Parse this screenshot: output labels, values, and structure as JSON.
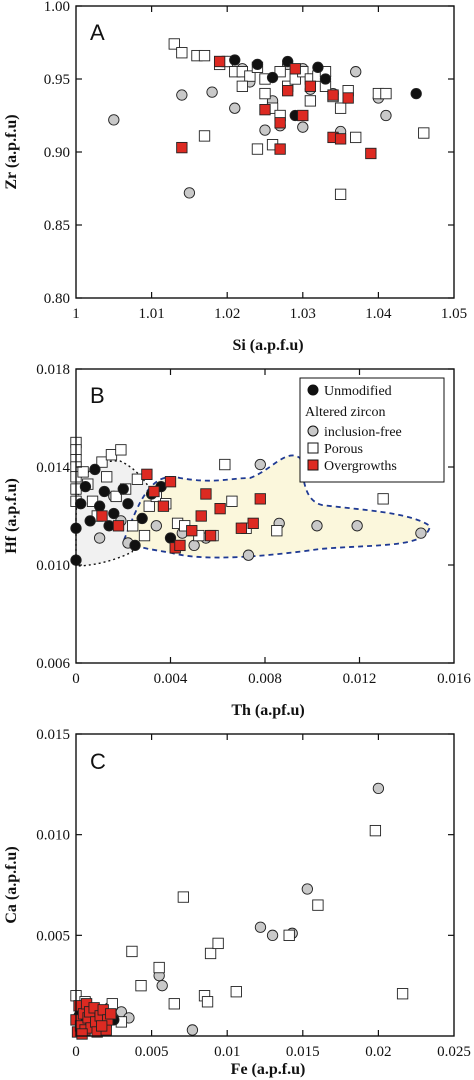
{
  "colors": {
    "unmodified": "#111111",
    "inclusion_free": "#c9c9c9",
    "porous": "#ffffff",
    "overgrowth": "#dd2a22",
    "region_fill": "#fbf7dc",
    "region_stroke": "#1f3a93"
  },
  "legend": {
    "unmodified": "Unmodified",
    "altered_header": "Altered zircon",
    "inclusion_free": "inclusion-free",
    "porous": "Porous",
    "overgrowths": "Overgrowths"
  },
  "chart_data": [
    {
      "panel": "A",
      "type": "scatter",
      "xlabel": "Si (a.p.f.u)",
      "ylabel": "Zr (a.p.f.u)",
      "xlim": [
        1,
        1.05
      ],
      "ylim": [
        0.8,
        1.0
      ],
      "xticks": [
        "1",
        "1.01",
        "1.02",
        "1.03",
        "1.04",
        "1.05"
      ],
      "yticks": [
        "0.80",
        "0.85",
        "0.90",
        "0.95",
        "1.00"
      ],
      "series": [
        {
          "key": "unmodified",
          "points": [
            [
              1.021,
              0.963
            ],
            [
              1.024,
              0.96
            ],
            [
              1.028,
              0.962
            ],
            [
              1.032,
              0.958
            ],
            [
              1.029,
              0.925
            ],
            [
              1.026,
              0.951
            ],
            [
              1.045,
              0.94
            ],
            [
              1.033,
              0.95
            ]
          ]
        },
        {
          "key": "inclusion_free",
          "points": [
            [
              1.005,
              0.922
            ],
            [
              1.015,
              0.872
            ],
            [
              1.014,
              0.939
            ],
            [
              1.018,
              0.941
            ],
            [
              1.02,
              0.962
            ],
            [
              1.021,
              0.93
            ],
            [
              1.023,
              0.948
            ],
            [
              1.025,
              0.915
            ],
            [
              1.027,
              0.918
            ],
            [
              1.03,
              0.917
            ],
            [
              1.031,
              0.943
            ],
            [
              1.033,
              0.952
            ],
            [
              1.035,
              0.914
            ],
            [
              1.037,
              0.955
            ],
            [
              1.04,
              0.937
            ],
            [
              1.041,
              0.925
            ],
            [
              1.028,
              0.96
            ],
            [
              1.031,
              0.95
            ],
            [
              1.022,
              0.957
            ],
            [
              1.034,
              0.94
            ],
            [
              1.026,
              0.935
            ],
            [
              1.03,
              0.957
            ]
          ]
        },
        {
          "key": "porous",
          "points": [
            [
              1.013,
              0.974
            ],
            [
              1.014,
              0.968
            ],
            [
              1.016,
              0.966
            ],
            [
              1.017,
              0.966
            ],
            [
              1.019,
              0.96
            ],
            [
              1.02,
              0.962
            ],
            [
              1.021,
              0.955
            ],
            [
              1.022,
              0.955
            ],
            [
              1.023,
              0.952
            ],
            [
              1.024,
              0.958
            ],
            [
              1.025,
              0.95
            ],
            [
              1.025,
              0.94
            ],
            [
              1.026,
              0.93
            ],
            [
              1.026,
              0.905
            ],
            [
              1.027,
              0.955
            ],
            [
              1.028,
              0.945
            ],
            [
              1.029,
              0.95
            ],
            [
              1.03,
              0.955
            ],
            [
              1.031,
              0.95
            ],
            [
              1.032,
              0.952
            ],
            [
              1.033,
              0.945
            ],
            [
              1.034,
              0.938
            ],
            [
              1.035,
              0.93
            ],
            [
              1.036,
              0.942
            ],
            [
              1.037,
              0.91
            ],
            [
              1.04,
              0.94
            ],
            [
              1.041,
              0.94
            ],
            [
              1.046,
              0.913
            ],
            [
              1.035,
              0.871
            ],
            [
              1.024,
              0.902
            ],
            [
              1.017,
              0.911
            ],
            [
              1.031,
              0.935
            ],
            [
              1.027,
              0.925
            ],
            [
              1.022,
              0.945
            ],
            [
              1.033,
              0.955
            ]
          ]
        },
        {
          "key": "overgrowth",
          "points": [
            [
              1.014,
              0.903
            ],
            [
              1.019,
              0.962
            ],
            [
              1.025,
              0.929
            ],
            [
              1.027,
              0.92
            ],
            [
              1.027,
              0.902
            ],
            [
              1.029,
              0.957
            ],
            [
              1.03,
              0.925
            ],
            [
              1.031,
              0.945
            ],
            [
              1.034,
              0.939
            ],
            [
              1.034,
              0.91
            ],
            [
              1.035,
              0.909
            ],
            [
              1.036,
              0.937
            ],
            [
              1.039,
              0.899
            ],
            [
              1.028,
              0.942
            ]
          ]
        }
      ]
    },
    {
      "panel": "B",
      "type": "scatter",
      "xlabel": "Th (a.pf.u)",
      "ylabel": "Hf (a.p.f.u)",
      "xlim": [
        0,
        0.016
      ],
      "ylim": [
        0.006,
        0.018
      ],
      "xticks": [
        "0",
        "0.004",
        "0.008",
        "0.012",
        "0.016"
      ],
      "yticks": [
        "0.006",
        "0.010",
        "0.014",
        "0.018"
      ],
      "series": [
        {
          "key": "unmodified",
          "points": [
            [
              0.0,
              0.0102
            ],
            [
              0.0,
              0.0115
            ],
            [
              0.0002,
              0.0125
            ],
            [
              0.0004,
              0.0132
            ],
            [
              0.0006,
              0.0118
            ],
            [
              0.0008,
              0.0139
            ],
            [
              0.001,
              0.0124
            ],
            [
              0.0012,
              0.013
            ],
            [
              0.0014,
              0.0116
            ],
            [
              0.0016,
              0.0121
            ],
            [
              0.002,
              0.0131
            ],
            [
              0.0022,
              0.0125
            ],
            [
              0.0025,
              0.0108
            ],
            [
              0.0028,
              0.0119
            ],
            [
              0.0032,
              0.0129
            ],
            [
              0.0036,
              0.0132
            ],
            [
              0.004,
              0.0111
            ]
          ]
        },
        {
          "key": "inclusion_free",
          "points": [
            [
              0.001,
              0.0111
            ],
            [
              0.0016,
              0.0128
            ],
            [
              0.0019,
              0.0118
            ],
            [
              0.0022,
              0.0109
            ],
            [
              0.0034,
              0.0116
            ],
            [
              0.0045,
              0.0113
            ],
            [
              0.0055,
              0.0111
            ],
            [
              0.0073,
              0.0104
            ],
            [
              0.0078,
              0.0141
            ],
            [
              0.0086,
              0.0117
            ],
            [
              0.0102,
              0.0116
            ],
            [
              0.0119,
              0.0116
            ],
            [
              0.0146,
              0.0113
            ],
            [
              0.005,
              0.0108
            ]
          ]
        },
        {
          "key": "porous",
          "points": [
            [
              0.0,
              0.015
            ],
            [
              0.0,
              0.0147
            ],
            [
              0.0,
              0.0143
            ],
            [
              0.0,
              0.014
            ],
            [
              0.0,
              0.0136
            ],
            [
              0.0,
              0.0131
            ],
            [
              0.0,
              0.0126
            ],
            [
              0.0003,
              0.0138
            ],
            [
              0.0005,
              0.0133
            ],
            [
              0.0007,
              0.0126
            ],
            [
              0.0009,
              0.012
            ],
            [
              0.0011,
              0.0142
            ],
            [
              0.0013,
              0.0136
            ],
            [
              0.0015,
              0.0145
            ],
            [
              0.0017,
              0.0128
            ],
            [
              0.0019,
              0.0147
            ],
            [
              0.0021,
              0.0131
            ],
            [
              0.0024,
              0.0116
            ],
            [
              0.0026,
              0.0135
            ],
            [
              0.0029,
              0.0112
            ],
            [
              0.0031,
              0.0124
            ],
            [
              0.0034,
              0.0128
            ],
            [
              0.0038,
              0.0125
            ],
            [
              0.0043,
              0.0117
            ],
            [
              0.0046,
              0.0116
            ],
            [
              0.0052,
              0.0112
            ],
            [
              0.0058,
              0.0112
            ],
            [
              0.0063,
              0.0141
            ],
            [
              0.0066,
              0.0126
            ],
            [
              0.0072,
              0.0115
            ],
            [
              0.0085,
              0.0114
            ],
            [
              0.013,
              0.0127
            ]
          ]
        },
        {
          "key": "overgrowth",
          "points": [
            [
              0.0011,
              0.012
            ],
            [
              0.0018,
              0.0116
            ],
            [
              0.003,
              0.0137
            ],
            [
              0.0033,
              0.013
            ],
            [
              0.0037,
              0.0124
            ],
            [
              0.004,
              0.0134
            ],
            [
              0.0042,
              0.0107
            ],
            [
              0.0044,
              0.0108
            ],
            [
              0.0049,
              0.0114
            ],
            [
              0.0053,
              0.012
            ],
            [
              0.0055,
              0.0129
            ],
            [
              0.0057,
              0.0112
            ],
            [
              0.0061,
              0.0123
            ],
            [
              0.007,
              0.0115
            ],
            [
              0.0075,
              0.0117
            ],
            [
              0.0078,
              0.0127
            ]
          ]
        }
      ]
    },
    {
      "panel": "C",
      "type": "scatter",
      "xlabel": "Fe (a.p.f.u)",
      "ylabel": "Ca (a.p.f.u)",
      "xlim": [
        0,
        0.025
      ],
      "ylim": [
        0,
        0.015
      ],
      "xticks": [
        "0",
        "0.005",
        "0.01",
        "0.015",
        "0.02",
        "0.025"
      ],
      "yticks": [
        "0.005",
        "0.010",
        "0.015"
      ],
      "series": [
        {
          "key": "unmodified",
          "points": [
            [
              0.0002,
              0.001
            ],
            [
              0.0008,
              0.0006
            ],
            [
              0.0014,
              0.0009
            ],
            [
              0.002,
              0.0005
            ],
            [
              0.0025,
              0.0008
            ]
          ]
        },
        {
          "key": "inclusion_free",
          "points": [
            [
              0.0022,
              0.0014
            ],
            [
              0.003,
              0.0012
            ],
            [
              0.0035,
              0.0009
            ],
            [
              0.0055,
              0.003
            ],
            [
              0.0057,
              0.0025
            ],
            [
              0.0077,
              0.0003
            ],
            [
              0.0122,
              0.0054
            ],
            [
              0.013,
              0.005
            ],
            [
              0.0143,
              0.0051
            ],
            [
              0.0153,
              0.0073
            ],
            [
              0.02,
              0.0123
            ],
            [
              0.001,
              0.0013
            ]
          ]
        },
        {
          "key": "porous",
          "points": [
            [
              0.0,
              0.002
            ],
            [
              0.0003,
              0.0014
            ],
            [
              0.0006,
              0.0017
            ],
            [
              0.001,
              0.0012
            ],
            [
              0.0015,
              0.0011
            ],
            [
              0.002,
              0.0012
            ],
            [
              0.0024,
              0.0016
            ],
            [
              0.003,
              0.0007
            ],
            [
              0.0037,
              0.0042
            ],
            [
              0.0043,
              0.0025
            ],
            [
              0.0055,
              0.0034
            ],
            [
              0.0065,
              0.0016
            ],
            [
              0.0071,
              0.0069
            ],
            [
              0.0085,
              0.002
            ],
            [
              0.0087,
              0.0017
            ],
            [
              0.0089,
              0.0041
            ],
            [
              0.0094,
              0.0046
            ],
            [
              0.0106,
              0.0022
            ],
            [
              0.0141,
              0.005
            ],
            [
              0.016,
              0.0065
            ],
            [
              0.0198,
              0.0102
            ],
            [
              0.0216,
              0.0021
            ]
          ]
        },
        {
          "key": "overgrowth",
          "points": [
            [
              0.0,
              0.0008
            ],
            [
              0.0001,
              0.0002
            ],
            [
              0.0002,
              0.0015
            ],
            [
              0.0003,
              0.0005
            ],
            [
              0.0005,
              0.0011
            ],
            [
              0.0006,
              0.0003
            ],
            [
              0.0007,
              0.0016
            ],
            [
              0.0008,
              0.0009
            ],
            [
              0.0009,
              0.0012
            ],
            [
              0.001,
              0.0004
            ],
            [
              0.0012,
              0.0014
            ],
            [
              0.0013,
              0.0007
            ],
            [
              0.0014,
              0.0002
            ],
            [
              0.0016,
              0.001
            ],
            [
              0.0018,
              0.0013
            ],
            [
              0.002,
              0.0003
            ],
            [
              0.0021,
              0.0008
            ],
            [
              0.0023,
              0.0011
            ],
            [
              0.0004,
              0.0001
            ],
            [
              0.0017,
              0.0005
            ]
          ]
        }
      ]
    }
  ]
}
